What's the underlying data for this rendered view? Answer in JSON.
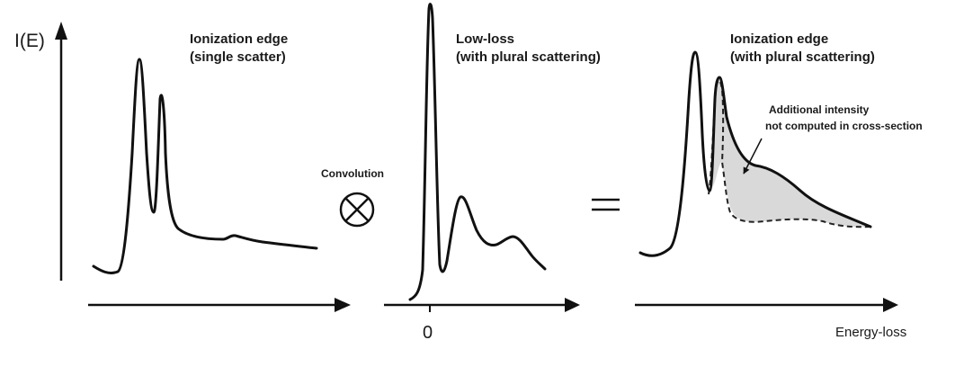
{
  "axis": {
    "y_label": "I(E)",
    "zero_tick": "0",
    "x_label": "Energy-loss"
  },
  "panels": [
    {
      "title_line1": "Ionization edge",
      "title_line2": "(single scatter)"
    },
    {
      "title_line1": "Low-loss",
      "title_line2": "(with plural scattering)"
    },
    {
      "title_line1": "Ionization edge",
      "title_line2": "(with plural scattering)"
    }
  ],
  "operators": {
    "convolution_label": "Convolution",
    "convolution_symbol": "⊗",
    "equals_symbol": "="
  },
  "annotation": {
    "line1": "Additional intensity",
    "line2": "not computed in cross-section"
  },
  "colors": {
    "stroke": "#111111",
    "shaded_area": "#d9d9d9"
  }
}
